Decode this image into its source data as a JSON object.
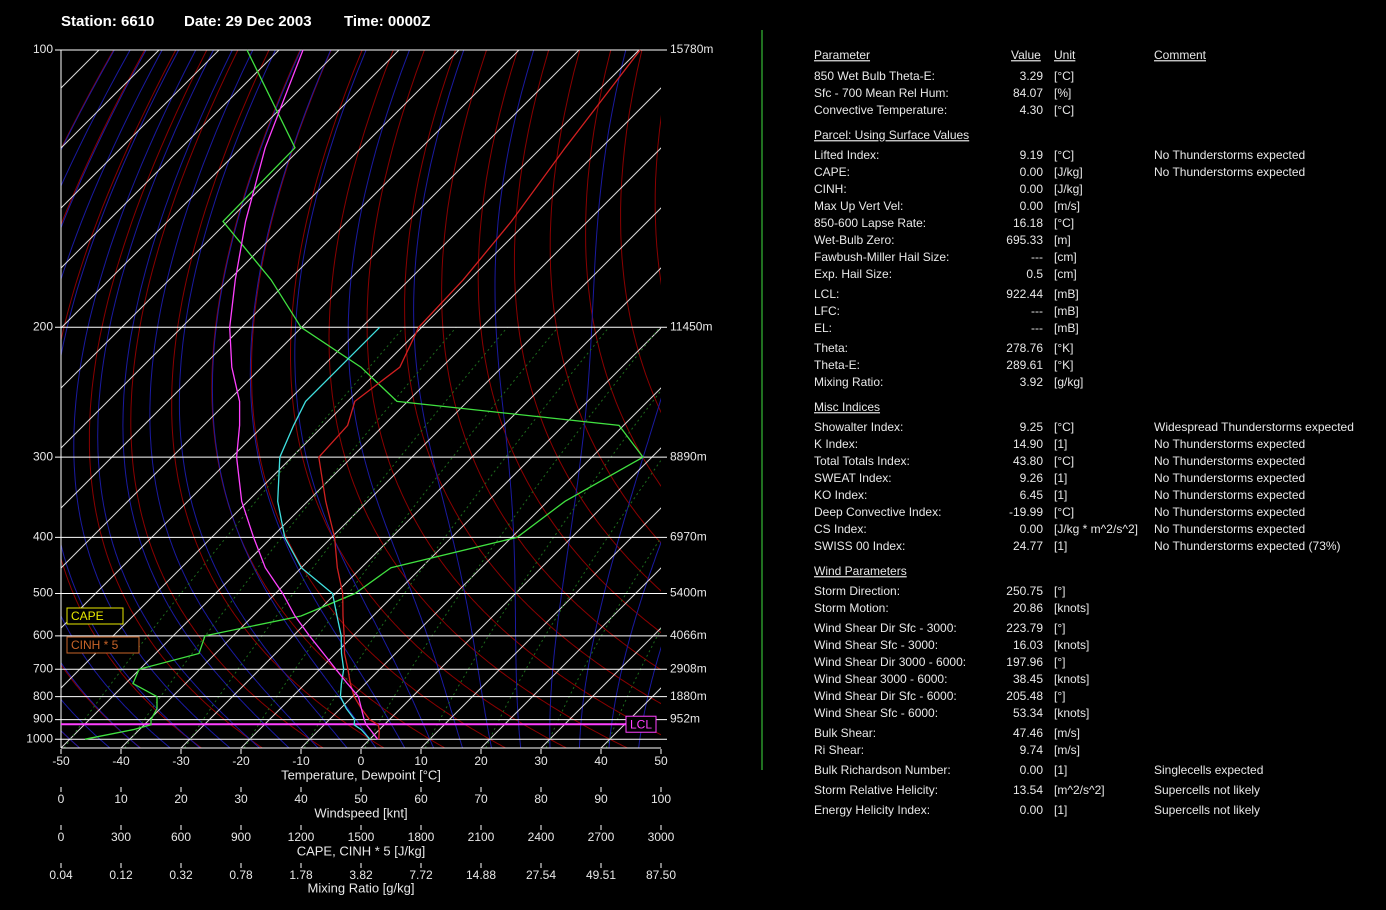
{
  "header": {
    "station": "Station: 6610",
    "date": "Date: 29 Dec 2003",
    "time": "Time: 0000Z"
  },
  "chart_data": {
    "type": "skewt",
    "xlabel": "Temperature, Dewpoint [°C]",
    "xlim": [
      -50,
      50
    ],
    "xticks": [
      -50,
      -40,
      -30,
      -20,
      -10,
      0,
      10,
      20,
      30,
      40,
      50
    ],
    "ylim": [
      100,
      1050
    ],
    "yticks": [
      100,
      200,
      300,
      400,
      500,
      600,
      700,
      800,
      900,
      1000
    ],
    "height_labels": [
      {
        "pressure": 100,
        "label": "15780m"
      },
      {
        "pressure": 200,
        "label": "11450m"
      },
      {
        "pressure": 300,
        "label": "8890m"
      },
      {
        "pressure": 400,
        "label": "6970m"
      },
      {
        "pressure": 500,
        "label": "5400m"
      },
      {
        "pressure": 600,
        "label": "4066m"
      },
      {
        "pressure": 700,
        "label": "2908m"
      },
      {
        "pressure": 800,
        "label": "1880m"
      },
      {
        "pressure": 900,
        "label": "952m"
      }
    ],
    "pressure": [
      1000,
      950,
      925,
      900,
      850,
      800,
      750,
      700,
      650,
      600,
      550,
      500,
      450,
      400,
      350,
      300,
      270,
      250,
      225,
      200,
      175,
      150,
      125,
      100
    ],
    "series": [
      {
        "color": "#d02020",
        "values": [
          1.5,
          0,
          -1,
          -3.3,
          -6.5,
          -9.7,
          -12.5,
          -15.3,
          -18.5,
          -21.5,
          -25,
          -28.8,
          -34,
          -39.5,
          -47,
          -55.5,
          -56,
          -58.8,
          -57,
          -60.5,
          -61,
          -62.7,
          -66,
          -69.8
        ]
      },
      {
        "color": "#40e0e0",
        "values": [
          0,
          -3,
          -5,
          -5.8,
          -9,
          -12,
          -14,
          -16,
          -19,
          -22,
          -26,
          -30.5,
          -40,
          -47.8,
          -55,
          -62,
          -65,
          -67,
          -67,
          -67,
          null,
          null,
          null,
          null
        ]
      },
      {
        "color": "#ff40ff",
        "values": [
          1.3,
          -1.5,
          -3,
          -4.2,
          -6.5,
          -9,
          -13,
          -17.3,
          -22,
          -27.3,
          -33,
          -38.8,
          -46,
          -53,
          -61,
          -69.2,
          -74,
          -78,
          -85,
          -92,
          -99,
          -107,
          -116,
          -126
        ]
      }
    ],
    "wind_axis": {
      "label": "Windspeed [knt]",
      "lim": [
        0,
        100
      ],
      "ticks": [
        0,
        10,
        20,
        30,
        40,
        50,
        60,
        70,
        80,
        90,
        100
      ],
      "color": "#40e040",
      "values": [
        4,
        12,
        15,
        15,
        16,
        16,
        12,
        13,
        23,
        24,
        40,
        49,
        55,
        76,
        84,
        97,
        93,
        56,
        50,
        40,
        35,
        27,
        39,
        31
      ]
    },
    "cape_axis": {
      "label": "CAPE, CINH * 5 [J/kg]",
      "lim": [
        0,
        3000
      ],
      "ticks": [
        0,
        300,
        600,
        900,
        1200,
        1500,
        1800,
        2100,
        2400,
        2700,
        3000
      ]
    },
    "mixing_axis": {
      "label": "Mixing Ratio [g/kg]",
      "ticks": [
        0.04,
        0.12,
        0.32,
        0.78,
        1.78,
        3.82,
        7.72,
        14.88,
        27.54,
        49.51,
        {
          "value": 87.5,
          "label": "87.50"
        }
      ]
    },
    "cape_label": {
      "text": "CAPE",
      "color": "#e8e800"
    },
    "cinh_label": {
      "text": "CINH * 5",
      "color": "#c86428"
    },
    "lcl": {
      "text": "LCL",
      "pressure": 922.44,
      "color": "#ff40ff"
    }
  },
  "table": {
    "headers": [
      "Parameter",
      "Value",
      "Unit",
      "Comment"
    ],
    "sections": [
      {
        "groups": [
          [
            [
              "850 Wet Bulb Theta-E:",
              "3.29",
              "[°C]"
            ],
            [
              "Sfc - 700 Mean Rel Hum:",
              "84.07",
              "[%]"
            ],
            [
              "Convective Temperature:",
              "4.30",
              "[°C]"
            ]
          ]
        ]
      },
      {
        "title": "Parcel: Using Surface Values",
        "groups": [
          [
            [
              "Lifted Index:",
              "9.19",
              "[°C]",
              "No Thunderstorms expected"
            ],
            [
              "CAPE:",
              "0.00",
              "[J/kg]",
              "No Thunderstorms expected"
            ],
            [
              "CINH:",
              "0.00",
              "[J/kg]"
            ],
            [
              "Max Up Vert Vel:",
              "0.00",
              "[m/s]"
            ],
            [
              "850-600 Lapse Rate:",
              "16.18",
              "[°C]"
            ],
            [
              "Wet-Bulb Zero:",
              "695.33",
              "[m]"
            ],
            [
              "Fawbush-Miller Hail Size:",
              "---",
              "[cm]"
            ],
            [
              "Exp. Hail Size:",
              "0.5",
              "[cm]"
            ]
          ],
          [
            [
              "LCL:",
              "922.44",
              "[mB]"
            ],
            [
              "LFC:",
              "---",
              "[mB]"
            ],
            [
              "EL:",
              "---",
              "[mB]"
            ]
          ],
          [
            [
              "Theta:",
              "278.76",
              "[°K]"
            ],
            [
              "Theta-E:",
              "289.61",
              "[°K]"
            ],
            [
              "Mixing Ratio:",
              "3.92",
              "[g/kg]"
            ]
          ]
        ]
      },
      {
        "title": "Misc Indices",
        "groups": [
          [
            [
              "Showalter Index:",
              "9.25",
              "[°C]",
              "Widespread Thunderstorms expected"
            ],
            [
              "K Index:",
              "14.90",
              "[1]",
              "No Thunderstorms expected"
            ],
            [
              "Total Totals Index:",
              "43.80",
              "[°C]",
              "No Thunderstorms expected"
            ],
            [
              "SWEAT Index:",
              "9.26",
              "[1]",
              "No Thunderstorms expected"
            ],
            [
              "KO Index:",
              "6.45",
              "[1]",
              "No Thunderstorms expected"
            ],
            [
              "Deep Convective Index:",
              "-19.99",
              "[°C]",
              "No Thunderstorms expected"
            ],
            [
              "CS Index:",
              "0.00",
              "[J/kg * m^2/s^2]",
              "No Thunderstorms expected"
            ],
            [
              "SWISS 00 Index:",
              "24.77",
              "[1]",
              "No Thunderstorms expected (73%)"
            ]
          ]
        ]
      },
      {
        "title": "Wind Parameters",
        "groups": [
          [
            [
              "Storm Direction:",
              "250.75",
              "[°]"
            ],
            [
              "Storm Motion:",
              "20.86",
              "[knots]"
            ]
          ],
          [
            [
              "Wind Shear Dir Sfc - 3000:",
              "223.79",
              "[°]"
            ],
            [
              "Wind Shear Sfc - 3000:",
              "16.03",
              "[knots]"
            ],
            [
              "Wind Shear Dir 3000 - 6000:",
              "197.96",
              "[°]"
            ],
            [
              "Wind Shear 3000 - 6000:",
              "38.45",
              "[knots]"
            ],
            [
              "Wind Shear Dir Sfc - 6000:",
              "205.48",
              "[°]"
            ],
            [
              "Wind Shear Sfc - 6000:",
              "53.34",
              "[knots]"
            ]
          ],
          [
            [
              "Bulk Shear:",
              "47.46",
              "[m/s]"
            ],
            [
              "Ri Shear:",
              "9.74",
              "[m/s]"
            ]
          ],
          [
            [
              "Bulk Richardson Number:",
              "0.00",
              "[1]",
              "Singlecells expected"
            ]
          ],
          [
            [
              "Storm Relative Helicity:",
              "13.54",
              "[m^2/s^2]",
              "Supercells not likely"
            ]
          ],
          [
            [
              "Energy Helicity Index:",
              "0.00",
              "[1]",
              "Supercells not likely"
            ]
          ]
        ]
      }
    ]
  }
}
